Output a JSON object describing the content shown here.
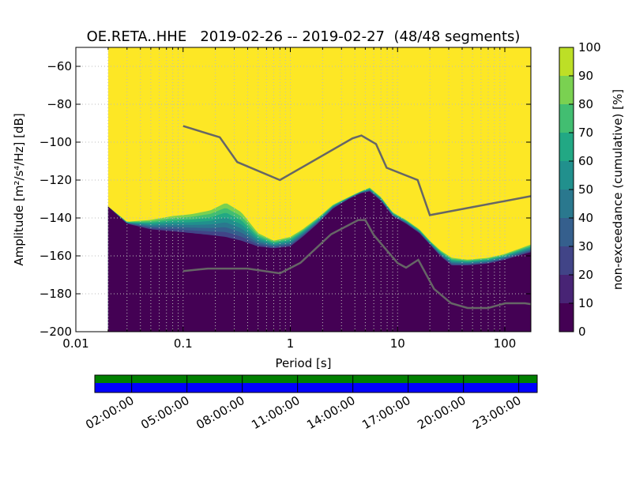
{
  "chart_data": [
    {
      "type": "heatmap",
      "title": "OE.RETA..HHE   2019-02-26 -- 2019-02-27  (48/48 segments)",
      "xlabel": "Period [s]",
      "ylabel": "Amplitude [m²/s⁴/Hz] [dB]",
      "x_scale": "log",
      "xlim": [
        0.01,
        175
      ],
      "ylim": [
        -200,
        -50
      ],
      "x_ticks": [
        0.01,
        0.1,
        1,
        10,
        100
      ],
      "x_tick_labels": [
        "0.01",
        "0.1",
        "1",
        "10",
        "100"
      ],
      "y_ticks": [
        -60,
        -80,
        -100,
        -120,
        -140,
        -160,
        -180,
        -200
      ],
      "y_tick_labels": [
        "−60",
        "−80",
        "−100",
        "−120",
        "−140",
        "−160",
        "−180",
        "−200"
      ],
      "grid": true,
      "data_period_min": 0.02,
      "colorbar": {
        "label": "non-exceedance (cumulative) [%]",
        "range": [
          0,
          100
        ],
        "ticks": [
          0,
          10,
          20,
          30,
          40,
          50,
          60,
          70,
          80,
          90,
          100
        ],
        "tick_labels": [
          "0",
          "10",
          "20",
          "30",
          "40",
          "50",
          "60",
          "70",
          "80",
          "90",
          "100"
        ],
        "colormap": "viridis"
      },
      "psd_curve": {
        "period": [
          0.02,
          0.03,
          0.05,
          0.08,
          0.12,
          0.18,
          0.25,
          0.35,
          0.5,
          0.7,
          1.0,
          1.3,
          1.8,
          2.5,
          3.5,
          4.5,
          5.5,
          7,
          9,
          12,
          16,
          20,
          25,
          32,
          45,
          70,
          100,
          175
        ],
        "amplitude_db": [
          -134,
          -143,
          -146,
          -147,
          -148,
          -149,
          -150,
          -152,
          -155,
          -156,
          -155,
          -150,
          -143,
          -135,
          -130,
          -127,
          -126,
          -131,
          -139,
          -143,
          -148,
          -154,
          -160,
          -165,
          -165,
          -164,
          -162,
          -158
        ],
        "transition_upper_db": [
          -134,
          -142,
          -141,
          -139,
          -138,
          -136,
          -132,
          -137,
          -148,
          -152,
          -150,
          -146,
          -140,
          -133,
          -129,
          -126,
          -124,
          -129,
          -137,
          -141,
          -146,
          -152,
          -157,
          -161,
          -162,
          -161,
          -159,
          -154
        ]
      },
      "noise_models": [
        {
          "name": "high_noise_model",
          "period": [
            0.1,
            0.22,
            0.32,
            0.8,
            3.8,
            4.6,
            6.3,
            7.9,
            15.4,
            20,
            175
          ],
          "amplitude_db": [
            -91.5,
            -97.4,
            -110.5,
            -120,
            -98,
            -96.5,
            -101,
            -113.5,
            -120,
            -138.5,
            -128.5
          ]
        },
        {
          "name": "low_noise_model",
          "period": [
            0.1,
            0.17,
            0.4,
            0.8,
            1.24,
            2.4,
            4.3,
            5.0,
            6.0,
            10,
            12,
            15.6,
            21.9,
            31.6,
            45,
            70,
            101,
            154,
            175
          ],
          "amplitude_db": [
            -168,
            -166.7,
            -166.7,
            -169.2,
            -163.7,
            -148.6,
            -141.1,
            -141.1,
            -149,
            -163.8,
            -166.2,
            -162.1,
            -177.5,
            -185,
            -187.5,
            -187.5,
            -185,
            -185,
            -185.5
          ]
        }
      ]
    },
    {
      "type": "bar",
      "title": "",
      "x_tick_labels": [
        "02:00:00",
        "05:00:00",
        "08:00:00",
        "11:00:00",
        "14:00:00",
        "17:00:00",
        "20:00:00",
        "23:00:00"
      ],
      "segments": 48,
      "series": [
        {
          "color": "#008000",
          "coverage": 1.0
        },
        {
          "color": "#0000ff",
          "coverage": 1.0
        }
      ]
    }
  ]
}
